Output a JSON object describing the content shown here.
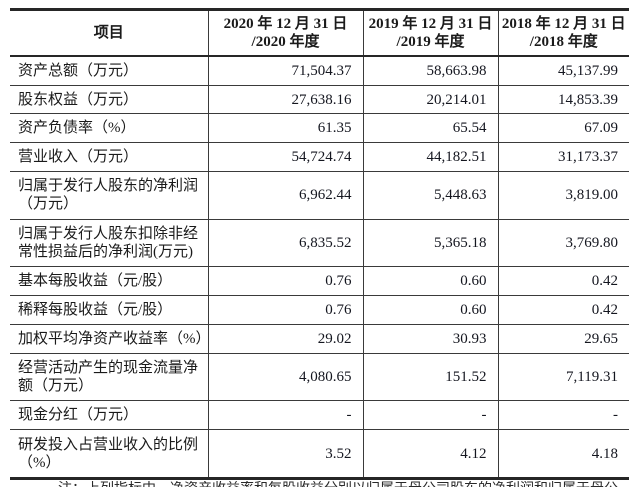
{
  "page": {
    "background": "#ffffff",
    "text_color": "#1a1a1a",
    "border_color": "#3a3a3a",
    "heavy_border_color": "#262626"
  },
  "table": {
    "columns": [
      {
        "line1": "项目",
        "line2": ""
      },
      {
        "line1": "2020 年 12 月 31 日",
        "line2": "/2020 年度"
      },
      {
        "line1": "2019 年 12 月 31 日",
        "line2": "/2019 年度"
      },
      {
        "line1": "2018 年 12 月 31 日",
        "line2": "/2018 年度"
      }
    ],
    "rows": [
      {
        "label": "资产总额（万元）",
        "values": [
          "71,504.37",
          "58,663.98",
          "45,137.99"
        ]
      },
      {
        "label": "股东权益（万元）",
        "values": [
          "27,638.16",
          "20,214.01",
          "14,853.39"
        ]
      },
      {
        "label": "资产负债率（%）",
        "values": [
          "61.35",
          "65.54",
          "67.09"
        ]
      },
      {
        "label": "营业收入（万元）",
        "values": [
          "54,724.74",
          "44,182.51",
          "31,173.37"
        ]
      },
      {
        "label": "归属于发行人股东的净利润（万元）",
        "values": [
          "6,962.44",
          "5,448.63",
          "3,819.00"
        ]
      },
      {
        "label": "归属于发行人股东扣除非经常性损益后的净利润(万元)",
        "values": [
          "6,835.52",
          "5,365.18",
          "3,769.80"
        ]
      },
      {
        "label": "基本每股收益（元/股）",
        "values": [
          "0.76",
          "0.60",
          "0.42"
        ]
      },
      {
        "label": "稀释每股收益（元/股）",
        "values": [
          "0.76",
          "0.60",
          "0.42"
        ]
      },
      {
        "label": "加权平均净资产收益率（%）",
        "values": [
          "29.02",
          "30.93",
          "29.65"
        ]
      },
      {
        "label": "经营活动产生的现金流量净额（万元）",
        "values": [
          "4,080.65",
          "151.52",
          "7,119.31"
        ]
      },
      {
        "label": "现金分红（万元）",
        "values": [
          "-",
          "-",
          "-"
        ]
      },
      {
        "label": "研发投入占营业收入的比例（%）",
        "values": [
          "3.52",
          "4.12",
          "4.18"
        ]
      }
    ]
  },
  "footnote": "注：上列指标中，净资产收益率和每股收益分别以归属于母公司股东的净利润和归属于母公司股东扣除非经常性损益后的净利润计算"
}
